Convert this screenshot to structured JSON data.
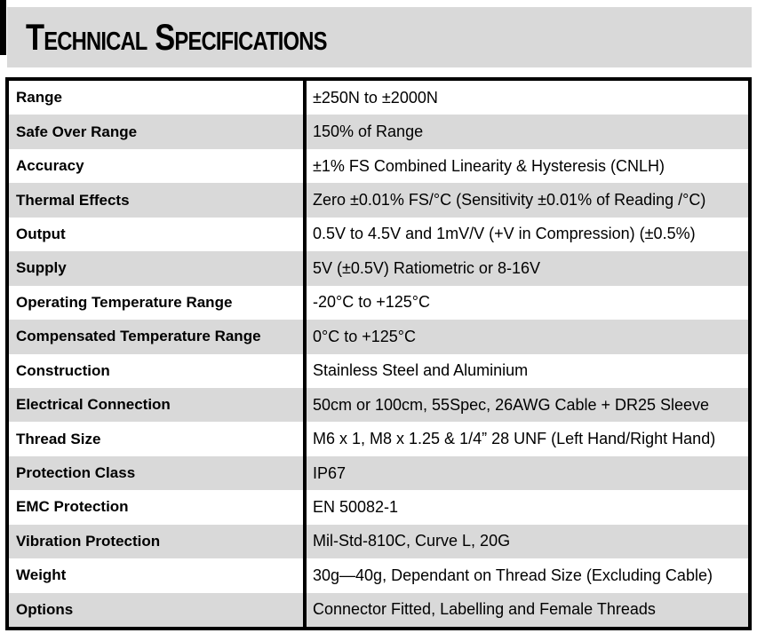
{
  "header": {
    "title": "Technical Specifications"
  },
  "colors": {
    "accent_bar": "#000000",
    "header_band": "#d9d9d9",
    "row_stripe": "#d9d9d9",
    "row_base": "#ffffff",
    "border": "#000000",
    "text": "#000000"
  },
  "table": {
    "rows": [
      {
        "label": "Range",
        "value": "±250N to ±2000N"
      },
      {
        "label": "Safe Over Range",
        "value": "150% of Range"
      },
      {
        "label": "Accuracy",
        "value": "±1% FS Combined Linearity & Hysteresis (CNLH)"
      },
      {
        "label": "Thermal Effects",
        "value": "Zero ±0.01% FS/°C (Sensitivity ±0.01% of Reading /°C)"
      },
      {
        "label": "Output",
        "value": "0.5V to 4.5V and 1mV/V (+V in Compression) (±0.5%)"
      },
      {
        "label": "Supply",
        "value": "5V (±0.5V) Ratiometric or 8-16V"
      },
      {
        "label": "Operating Temperature Range",
        "value": "-20°C to +125°C"
      },
      {
        "label": "Compensated Temperature Range",
        "value": "0°C to +125°C"
      },
      {
        "label": "Construction",
        "value": "Stainless Steel and Aluminium"
      },
      {
        "label": "Electrical Connection",
        "value": "50cm or 100cm, 55Spec, 26AWG Cable + DR25 Sleeve"
      },
      {
        "label": "Thread Size",
        "value": "M6 x 1, M8 x 1.25 & 1/4” 28 UNF (Left Hand/Right Hand)"
      },
      {
        "label": "Protection Class",
        "value": "IP67"
      },
      {
        "label": "EMC Protection",
        "value": "EN 50082-1"
      },
      {
        "label": "Vibration Protection",
        "value": "Mil-Std-810C, Curve L, 20G"
      },
      {
        "label": "Weight",
        "value": "30g—40g, Dependant on Thread Size (Excluding Cable)"
      },
      {
        "label": "Options",
        "value": "Connector Fitted, Labelling and Female Threads"
      }
    ]
  }
}
